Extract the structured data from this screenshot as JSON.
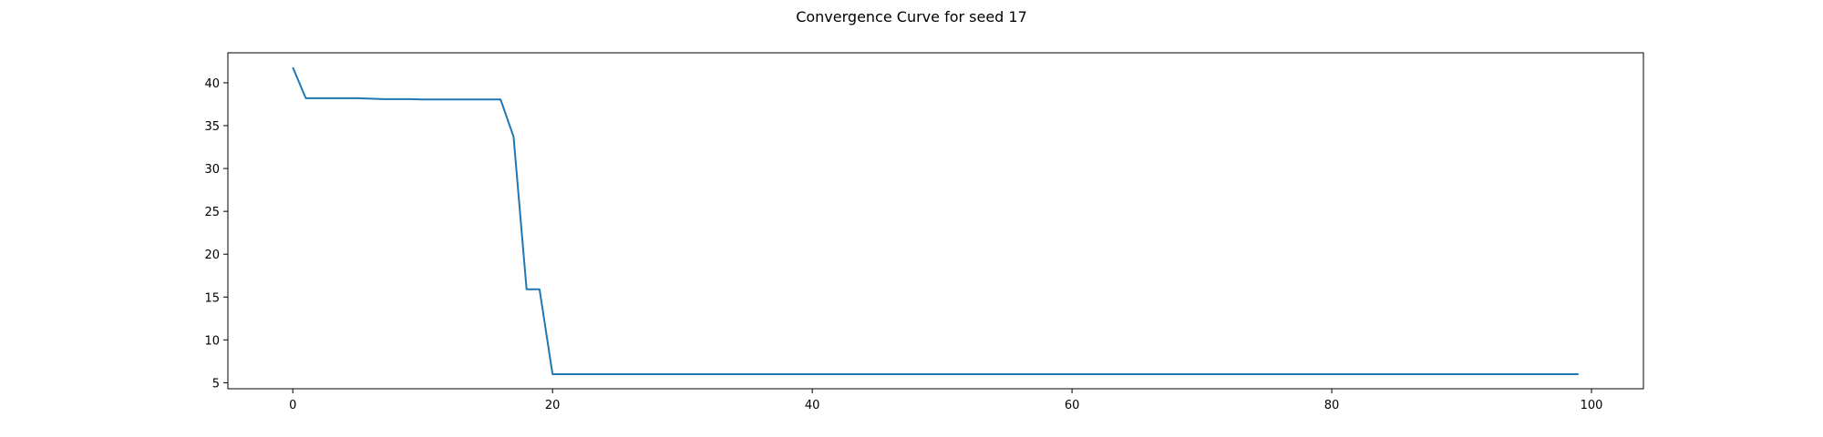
{
  "chart_data": {
    "type": "line",
    "title": "Convergence Curve for seed 17",
    "xlabel": "",
    "ylabel": "",
    "xlim": [
      -5,
      104
    ],
    "ylim": [
      4.3,
      43.5
    ],
    "xticks": [
      0,
      20,
      40,
      60,
      80,
      100
    ],
    "yticks": [
      5,
      10,
      15,
      20,
      25,
      30,
      35,
      40
    ],
    "grid": false,
    "series": [
      {
        "color": "#1f77b4",
        "x": [
          0,
          1,
          2,
          3,
          4,
          5,
          6,
          7,
          8,
          9,
          10,
          11,
          12,
          13,
          14,
          15,
          16,
          17,
          18,
          19,
          20,
          21,
          30,
          40,
          50,
          60,
          70,
          80,
          90,
          99
        ],
        "y": [
          41.8,
          38.2,
          38.2,
          38.2,
          38.2,
          38.2,
          38.15,
          38.1,
          38.1,
          38.1,
          38.05,
          38.05,
          38.05,
          38.05,
          38.05,
          38.05,
          38.05,
          33.7,
          15.9,
          15.9,
          6.0,
          6.0,
          6.0,
          6.0,
          6.0,
          6.0,
          6.0,
          6.0,
          6.0,
          6.0
        ]
      }
    ]
  }
}
